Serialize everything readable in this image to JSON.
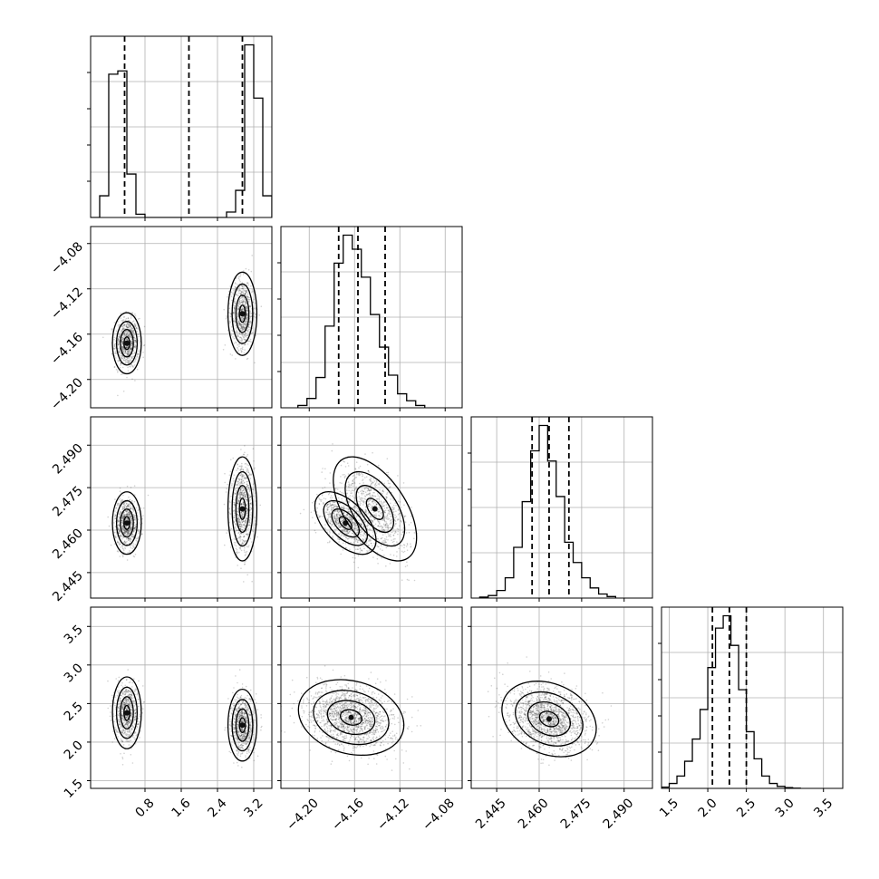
{
  "chart_data": {
    "type": "corner",
    "parameters": [
      {
        "range": [
          -0.4,
          3.6
        ],
        "ticks": [
          0.8,
          1.6,
          2.4,
          3.2
        ],
        "tick_labels": [
          "0.8",
          "1.6",
          "2.4",
          "3.2"
        ],
        "quantiles": [
          0.35,
          1.77,
          2.95
        ],
        "histogram": {
          "edges": [
            -0.4,
            -0.2,
            0.0,
            0.2,
            0.4,
            0.6,
            0.8,
            1.0,
            1.2,
            1.4,
            1.6,
            1.8,
            2.0,
            2.2,
            2.4,
            2.6,
            2.8,
            3.0,
            3.2,
            3.4,
            3.6
          ],
          "counts": [
            0,
            200,
            1320,
            1350,
            400,
            30,
            0,
            0,
            0,
            0,
            0,
            0,
            0,
            0,
            0,
            50,
            250,
            1590,
            1100,
            200,
            0
          ]
        }
      },
      {
        "range": [
          -4.225,
          -4.065
        ],
        "ticks": [
          -4.2,
          -4.16,
          -4.12,
          -4.08
        ],
        "tick_labels": [
          "−4.20",
          "−4.16",
          "−4.12",
          "−4.08"
        ],
        "quantiles": [
          -4.174,
          -4.157,
          -4.133
        ],
        "histogram": {
          "edges": [
            -4.21,
            -4.202,
            -4.194,
            -4.186,
            -4.178,
            -4.17,
            -4.162,
            -4.154,
            -4.146,
            -4.138,
            -4.13,
            -4.122,
            -4.114,
            -4.106,
            -4.098
          ],
          "counts": [
            5,
            20,
            65,
            175,
            310,
            370,
            340,
            280,
            200,
            130,
            70,
            30,
            15,
            5
          ]
        }
      },
      {
        "range": [
          2.436,
          2.5
        ],
        "ticks": [
          2.445,
          2.46,
          2.475,
          2.49
        ],
        "tick_labels": [
          "2.445",
          "2.460",
          "2.475",
          "2.490"
        ],
        "quantiles": [
          2.4575,
          2.4635,
          2.4705
        ],
        "histogram": {
          "edges": [
            2.439,
            2.442,
            2.445,
            2.448,
            2.451,
            2.454,
            2.457,
            2.46,
            2.463,
            2.466,
            2.469,
            2.472,
            2.475,
            2.478,
            2.481,
            2.484,
            2.487
          ],
          "counts": [
            2,
            5,
            15,
            40,
            100,
            190,
            290,
            340,
            270,
            200,
            110,
            70,
            40,
            20,
            8,
            3
          ]
        }
      },
      {
        "range": [
          1.4,
          3.75
        ],
        "ticks": [
          1.5,
          2.0,
          2.5,
          3.0,
          3.5
        ],
        "tick_labels": [
          "1.5",
          "2.0",
          "2.5",
          "3.0",
          "3.5"
        ],
        "quantiles": [
          2.06,
          2.28,
          2.5
        ],
        "histogram": {
          "edges": [
            1.4,
            1.5,
            1.6,
            1.7,
            1.8,
            1.9,
            2.0,
            2.1,
            2.2,
            2.3,
            2.4,
            2.5,
            2.6,
            2.7,
            2.8,
            2.9,
            3.0,
            3.1,
            3.2
          ],
          "counts": [
            5,
            20,
            50,
            110,
            200,
            320,
            490,
            650,
            700,
            580,
            400,
            230,
            120,
            50,
            20,
            8,
            3,
            1
          ]
        }
      }
    ],
    "pairs": [
      {
        "row": 1,
        "col": 0,
        "clusters": [
          {
            "cx": 0.4,
            "cy": -4.168,
            "sx": 0.13,
            "sy": 0.011,
            "rho": 0.0,
            "w": 0.5
          },
          {
            "cx": 2.95,
            "cy": -4.142,
            "sx": 0.13,
            "sy": 0.015,
            "rho": 0.0,
            "w": 0.5
          }
        ]
      },
      {
        "row": 2,
        "col": 0,
        "clusters": [
          {
            "cx": 0.4,
            "cy": 2.4625,
            "sx": 0.13,
            "sy": 0.0045,
            "rho": 0.0,
            "w": 0.5
          },
          {
            "cx": 2.95,
            "cy": 2.4675,
            "sx": 0.13,
            "sy": 0.0075,
            "rho": 0.0,
            "w": 0.5
          }
        ]
      },
      {
        "row": 3,
        "col": 0,
        "clusters": [
          {
            "cx": 0.4,
            "cy": 2.38,
            "sx": 0.13,
            "sy": 0.19,
            "rho": 0.0,
            "w": 0.5
          },
          {
            "cx": 2.95,
            "cy": 2.22,
            "sx": 0.13,
            "sy": 0.19,
            "rho": 0.0,
            "w": 0.5
          }
        ]
      },
      {
        "row": 2,
        "col": 1,
        "clusters": [
          {
            "cx": -4.168,
            "cy": 2.4625,
            "sx": 0.011,
            "sy": 0.0045,
            "rho": -0.55,
            "w": 0.5
          },
          {
            "cx": -4.142,
            "cy": 2.4675,
            "sx": 0.015,
            "sy": 0.0075,
            "rho": -0.55,
            "w": 0.5
          }
        ]
      },
      {
        "row": 3,
        "col": 1,
        "clusters": [
          {
            "cx": -4.163,
            "cy": 2.32,
            "sx": 0.019,
            "sy": 0.2,
            "rho": -0.2,
            "w": 1.0
          }
        ]
      },
      {
        "row": 3,
        "col": 2,
        "clusters": [
          {
            "cx": 2.4635,
            "cy": 2.3,
            "sx": 0.0068,
            "sy": 0.2,
            "rho": -0.25,
            "w": 1.0
          }
        ]
      }
    ]
  }
}
